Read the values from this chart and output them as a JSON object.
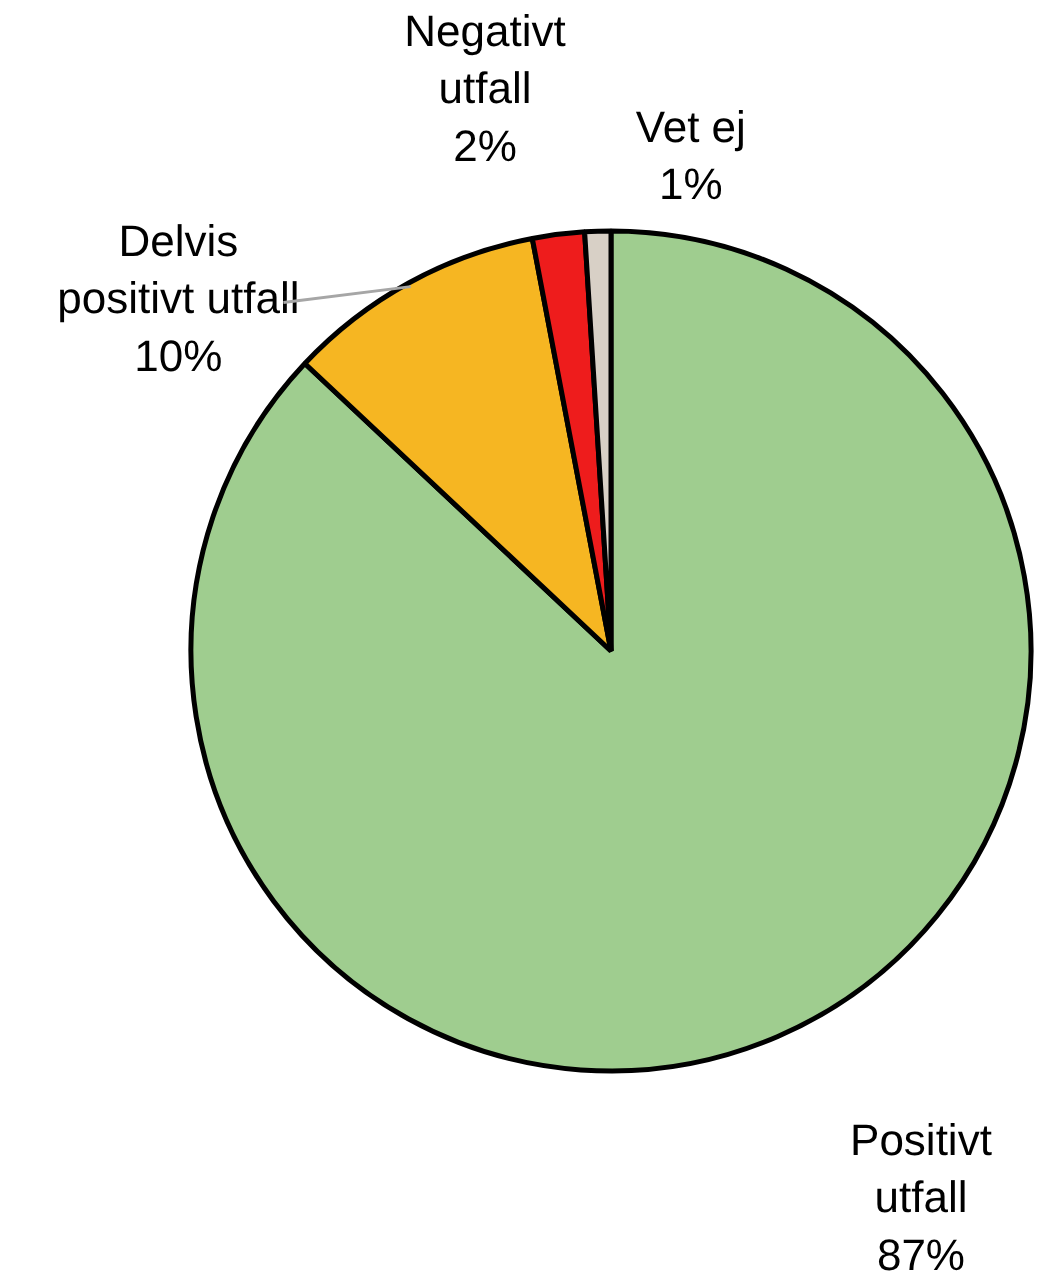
{
  "chart_data": {
    "type": "pie",
    "categories": [
      "Positivt\nutfall",
      "Delvis\npositivt utfall",
      "Negativt\nutfall",
      "Vet ej"
    ],
    "values": [
      87,
      10,
      2,
      1
    ],
    "colors": [
      "#9fcd8f",
      "#f6b622",
      "#ee1c1c",
      "#d8d0c6"
    ],
    "value_labels": [
      "87%",
      "10%",
      "2%",
      "1%"
    ],
    "legend": false
  }
}
